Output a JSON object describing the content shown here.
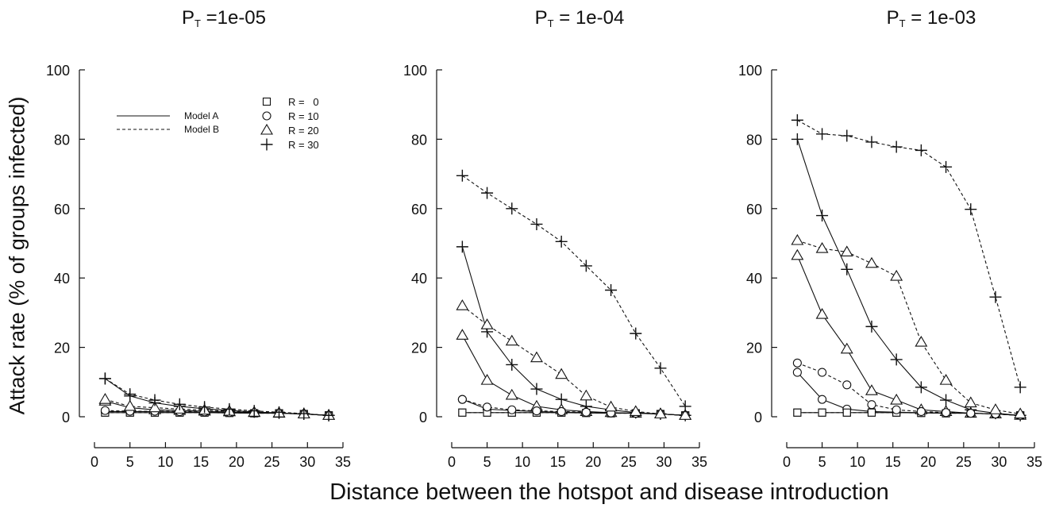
{
  "figure": {
    "ylabel": "Attack rate (% of groups infected)",
    "xlabel": "Distance between the hotspot and disease introduction"
  },
  "legend": {
    "lines": [
      {
        "label": "Model A",
        "style": "solid"
      },
      {
        "label": "Model B",
        "style": "dashed"
      }
    ],
    "markers": [
      {
        "label": "R =   0",
        "marker": "square"
      },
      {
        "label": "R = 10",
        "marker": "circle"
      },
      {
        "label": "R = 20",
        "marker": "triangle"
      },
      {
        "label": "R = 30",
        "marker": "plus"
      }
    ]
  },
  "chart_data": [
    {
      "type": "line",
      "title_main": "P",
      "title_sub": "T",
      "title_value": " =1e-05",
      "xlim": [
        0,
        35
      ],
      "ylim": [
        0,
        100
      ],
      "xticks": [
        0,
        5,
        10,
        15,
        20,
        25,
        30,
        35
      ],
      "yticks": [
        0,
        20,
        40,
        60,
        80,
        100
      ],
      "x": [
        1.5,
        5,
        8.5,
        12,
        15.5,
        19,
        22.5,
        26,
        29.5,
        33
      ],
      "series": [
        {
          "name": "Model A, R = 0",
          "model": "A",
          "marker": "square",
          "values": [
            1.2,
            1.2,
            1.2,
            1.2,
            1.2,
            1.1,
            1.0,
            1.0,
            0.8,
            0.4
          ]
        },
        {
          "name": "Model A, R = 10",
          "model": "A",
          "marker": "circle",
          "values": [
            1.5,
            1.5,
            1.5,
            1.4,
            1.3,
            1.2,
            1.1,
            1.0,
            0.8,
            0.4
          ]
        },
        {
          "name": "Model A, R = 20",
          "model": "A",
          "marker": "triangle",
          "values": [
            4.5,
            2.6,
            2.0,
            1.8,
            1.6,
            1.4,
            1.2,
            1.0,
            0.8,
            0.4
          ]
        },
        {
          "name": "Model A, R = 30",
          "model": "A",
          "marker": "plus",
          "values": [
            11,
            6.0,
            4.0,
            3.0,
            2.3,
            1.8,
            1.4,
            1.1,
            0.8,
            0.4
          ]
        },
        {
          "name": "Model B, R = 0",
          "model": "B",
          "marker": "square",
          "values": [
            1.2,
            1.2,
            1.2,
            1.2,
            1.2,
            1.1,
            1.0,
            1.0,
            0.8,
            0.4
          ]
        },
        {
          "name": "Model B, R = 10",
          "model": "B",
          "marker": "circle",
          "values": [
            1.8,
            1.6,
            1.6,
            1.5,
            1.4,
            1.2,
            1.1,
            1.0,
            0.8,
            0.4
          ]
        },
        {
          "name": "Model B, R = 20",
          "model": "B",
          "marker": "triangle",
          "values": [
            5.0,
            3.0,
            2.6,
            2.2,
            1.9,
            1.6,
            1.3,
            1.1,
            0.8,
            0.4
          ]
        },
        {
          "name": "Model B, R = 30",
          "model": "B",
          "marker": "plus",
          "values": [
            11,
            6.5,
            4.8,
            3.6,
            2.8,
            2.2,
            1.7,
            1.3,
            0.9,
            0.4
          ]
        }
      ]
    },
    {
      "type": "line",
      "title_main": "P",
      "title_sub": "T",
      "title_value": " = 1e-04",
      "xlim": [
        0,
        35
      ],
      "ylim": [
        0,
        100
      ],
      "xticks": [
        0,
        5,
        10,
        15,
        20,
        25,
        30,
        35
      ],
      "yticks": [
        0,
        20,
        40,
        60,
        80,
        100
      ],
      "x": [
        1.5,
        5,
        8.5,
        12,
        15.5,
        19,
        22.5,
        26,
        29.5,
        33
      ],
      "series": [
        {
          "name": "Model A, R = 0",
          "model": "A",
          "marker": "square",
          "values": [
            1.2,
            1.2,
            1.2,
            1.2,
            1.2,
            1.1,
            1.0,
            1.0,
            0.8,
            0.4
          ]
        },
        {
          "name": "Model A, R = 10",
          "model": "A",
          "marker": "circle",
          "values": [
            5.0,
            2.2,
            1.8,
            1.5,
            1.3,
            1.2,
            1.1,
            1.0,
            0.8,
            0.4
          ]
        },
        {
          "name": "Model A, R = 20",
          "model": "A",
          "marker": "triangle",
          "values": [
            23.5,
            10.5,
            6.2,
            3.0,
            2.0,
            1.5,
            1.2,
            1.0,
            0.8,
            0.4
          ]
        },
        {
          "name": "Model A, R = 30",
          "model": "A",
          "marker": "plus",
          "values": [
            49,
            24.5,
            15.0,
            8.0,
            5.0,
            3.0,
            2.0,
            1.2,
            0.8,
            0.4
          ]
        },
        {
          "name": "Model B, R = 0",
          "model": "B",
          "marker": "square",
          "values": [
            1.2,
            1.2,
            1.2,
            1.2,
            1.2,
            1.1,
            1.0,
            1.0,
            0.8,
            0.4
          ]
        },
        {
          "name": "Model B, R = 10",
          "model": "B",
          "marker": "circle",
          "values": [
            5.0,
            2.8,
            2.0,
            1.7,
            1.5,
            1.3,
            1.1,
            1.0,
            0.8,
            0.4
          ]
        },
        {
          "name": "Model B, R = 20",
          "model": "B",
          "marker": "triangle",
          "values": [
            32,
            26.5,
            21.8,
            17.0,
            12.2,
            6.0,
            2.8,
            1.5,
            0.8,
            0.4
          ]
        },
        {
          "name": "Model B, R = 30",
          "model": "B",
          "marker": "plus",
          "values": [
            69.5,
            64.5,
            60,
            55.5,
            50.5,
            43.5,
            36.5,
            24,
            14,
            3.0
          ]
        }
      ]
    },
    {
      "type": "line",
      "title_main": "P",
      "title_sub": "T",
      "title_value": " = 1e-03",
      "xlim": [
        0,
        35
      ],
      "ylim": [
        0,
        100
      ],
      "xticks": [
        0,
        5,
        10,
        15,
        20,
        25,
        30,
        35
      ],
      "yticks": [
        0,
        20,
        40,
        60,
        80,
        100
      ],
      "x": [
        1.5,
        5,
        8.5,
        12,
        15.5,
        19,
        22.5,
        26,
        29.5,
        33
      ],
      "series": [
        {
          "name": "Model A, R = 0",
          "model": "A",
          "marker": "square",
          "values": [
            1.2,
            1.2,
            1.2,
            1.2,
            1.2,
            1.1,
            1.0,
            1.0,
            0.8,
            0.4
          ]
        },
        {
          "name": "Model A, R = 10",
          "model": "A",
          "marker": "circle",
          "values": [
            12.8,
            5.0,
            2.2,
            1.5,
            1.3,
            1.2,
            1.1,
            1.0,
            0.8,
            0.4
          ]
        },
        {
          "name": "Model A, R = 20",
          "model": "A",
          "marker": "triangle",
          "values": [
            46.5,
            29.5,
            19.5,
            7.5,
            4.8,
            2.0,
            1.5,
            1.0,
            0.8,
            0.4
          ]
        },
        {
          "name": "Model A, R = 30",
          "model": "A",
          "marker": "plus",
          "values": [
            80,
            58,
            42.5,
            26,
            16.5,
            8.5,
            4.8,
            2.0,
            1.0,
            0.4
          ]
        },
        {
          "name": "Model B, R = 0",
          "model": "B",
          "marker": "square",
          "values": [
            1.2,
            1.2,
            1.2,
            1.2,
            1.2,
            1.1,
            1.0,
            1.0,
            0.8,
            0.4
          ]
        },
        {
          "name": "Model B, R = 10",
          "model": "B",
          "marker": "circle",
          "values": [
            15.5,
            12.8,
            9.2,
            3.5,
            2.0,
            1.5,
            1.2,
            1.0,
            0.8,
            0.4
          ]
        },
        {
          "name": "Model B, R = 20",
          "model": "B",
          "marker": "triangle",
          "values": [
            50.8,
            48.5,
            47.5,
            44.2,
            40.5,
            21.5,
            10.5,
            4.0,
            2.0,
            0.8
          ]
        },
        {
          "name": "Model B, R = 30",
          "model": "B",
          "marker": "plus",
          "values": [
            85.5,
            81.5,
            81,
            79.2,
            77.8,
            76.8,
            72,
            59.8,
            34.5,
            8.5
          ]
        }
      ]
    }
  ]
}
